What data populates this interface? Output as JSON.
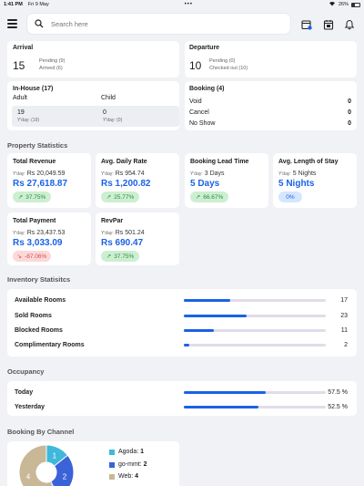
{
  "status": {
    "time": "1:41 PM",
    "date": "Fri 9 May",
    "battery": "26%"
  },
  "search": {
    "placeholder": "Search here"
  },
  "arrival": {
    "title": "Arrival",
    "count": "15",
    "pending": "Pending (9)",
    "arrived": "Arrived (6)"
  },
  "departure": {
    "title": "Departure",
    "count": "10",
    "pending": "Pending (0)",
    "checked_out": "Checked out (10)"
  },
  "inhouse": {
    "title": "In-House (17)",
    "adult_label": "Adult",
    "child_label": "Child",
    "adult_value": "19",
    "adult_yday": "Y'day: (19)",
    "child_value": "0",
    "child_yday": "Y'day: (0)"
  },
  "booking": {
    "title": "Booking (4)",
    "rows": [
      {
        "label": "Void",
        "value": "0"
      },
      {
        "label": "Cancel",
        "value": "0"
      },
      {
        "label": "No Show",
        "value": "0"
      }
    ]
  },
  "property_stats": {
    "title": "Property Statistics",
    "yday_prefix": "Y'day:",
    "metrics": [
      {
        "title": "Total Revenue",
        "yday": "Rs 20,049.59",
        "value": "Rs 27,618.87",
        "change": "37.75%",
        "trend": "up"
      },
      {
        "title": "Avg. Daily Rate",
        "yday": "Rs 954.74",
        "value": "Rs 1,200.82",
        "change": "25.77%",
        "trend": "up"
      },
      {
        "title": "Booking Lead Time",
        "yday": "3 Days",
        "value": "5 Days",
        "change": "66.67%",
        "trend": "up"
      },
      {
        "title": "Avg. Length of Stay",
        "yday": "5 Nights",
        "value": "5 Nights",
        "change": "0%",
        "trend": "flat"
      },
      {
        "title": "Total Payment",
        "yday": "Rs 23,437.53",
        "value": "Rs 3,033.09",
        "change": "-87.06%",
        "trend": "down"
      },
      {
        "title": "RevPar",
        "yday": "Rs 501.24",
        "value": "Rs 690.47",
        "change": "37.75%",
        "trend": "up"
      }
    ]
  },
  "inventory": {
    "title": "Inventory Statisitcs",
    "rows": [
      {
        "label": "Available Rooms",
        "value": "17",
        "fraction": 0.33
      },
      {
        "label": "Sold Rooms",
        "value": "23",
        "fraction": 0.44
      },
      {
        "label": "Blocked Rooms",
        "value": "11",
        "fraction": 0.21
      },
      {
        "label": "Complimentary Rooms",
        "value": "2",
        "fraction": 0.04
      }
    ]
  },
  "occupancy": {
    "title": "Occupancy",
    "rows": [
      {
        "label": "Today",
        "value": "57.5 %",
        "fraction": 0.575
      },
      {
        "label": "Yesterday",
        "value": "52.5 %",
        "fraction": 0.525
      }
    ]
  },
  "channel": {
    "title": "Booking By Channel",
    "items": [
      {
        "name": "Agoda:",
        "count": "1",
        "value": 1,
        "color": "#3fb8dc"
      },
      {
        "name": "go-mmt:",
        "count": "2",
        "value": 2,
        "color": "#3a63d8"
      },
      {
        "name": "Web:",
        "count": "4",
        "value": 4,
        "color": "#c8b896"
      }
    ]
  },
  "colors": {
    "accent": "#1a62e6",
    "green": "#2f8a40",
    "red": "#e04848"
  }
}
